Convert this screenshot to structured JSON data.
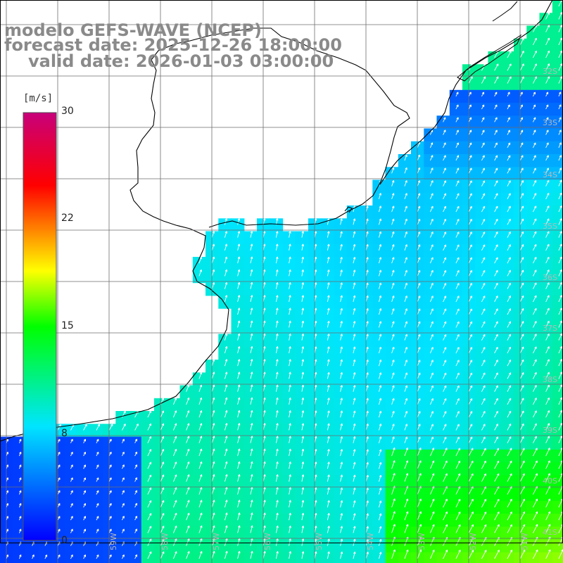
{
  "title": {
    "model": "modelo GEFS-WAVE (NCEP)",
    "forecast": "forecast date: 2025-12-26 18:00:00",
    "valid": "valid date: 2026-01-03 03:00:00"
  },
  "colorbar": {
    "unit": "[m/s]",
    "ticks": [
      "30",
      "22",
      "15",
      "8",
      "0"
    ],
    "min": 0,
    "max": 30,
    "stops": [
      "#0000ff",
      "#00e5ff",
      "#00ff00",
      "#ffff00",
      "#ff0000",
      "#c8007a"
    ]
  },
  "map": {
    "lat_labels": [
      "32S",
      "33S",
      "34S",
      "35S",
      "36S",
      "37S",
      "38S",
      "39S",
      "40S",
      "41S"
    ],
    "lon_labels": [
      "59W",
      "58W",
      "57W",
      "56W",
      "55W",
      "54W",
      "53W",
      "52W",
      "51W"
    ],
    "colors": {
      "land": "#ffffff",
      "coast": "#000000",
      "grid": "#6e6e6e",
      "arrow": "#ffffff"
    }
  }
}
